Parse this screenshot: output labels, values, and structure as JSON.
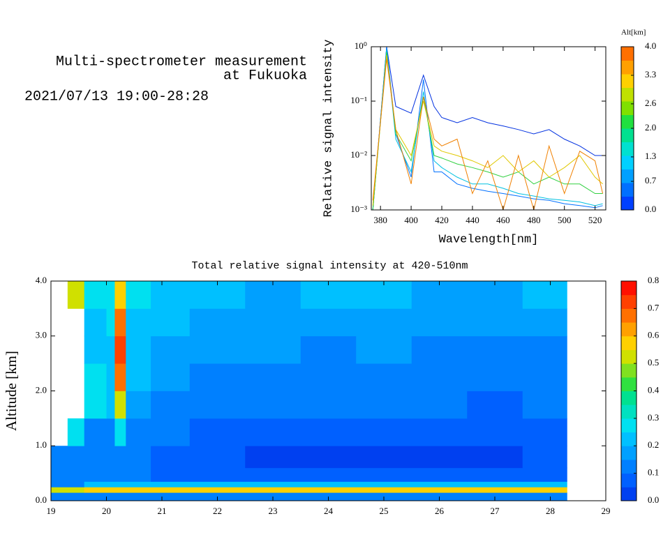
{
  "header": {
    "title_lines": [
      "Multi-spectrometer measurement",
      "at Fukuoka"
    ],
    "subtitle": "2021/07/13 19:00-28:28"
  },
  "chart_data": [
    {
      "type": "line",
      "y_scale": "log",
      "xlabel": "Wavelength[nm]",
      "ylabel": "Relative signal intensity",
      "x": [
        375,
        384,
        390,
        400,
        408,
        415,
        420,
        430,
        440,
        450,
        460,
        470,
        480,
        490,
        500,
        510,
        520,
        525
      ],
      "xlim": [
        374,
        527
      ],
      "xticks": [
        380,
        400,
        420,
        440,
        460,
        480,
        500,
        520
      ],
      "ylim": [
        0.001,
        1
      ],
      "yticks": [
        {
          "value": 0.001,
          "label": "10⁻³"
        },
        {
          "value": 0.01,
          "label": "10⁻²"
        },
        {
          "value": 0.1,
          "label": "10⁻¹"
        },
        {
          "value": 1,
          "label": "10⁰"
        }
      ],
      "series": [
        {
          "color": "#0030e0",
          "values": [
            0.001,
            1,
            0.08,
            0.06,
            0.3,
            0.08,
            0.05,
            0.04,
            0.05,
            0.04,
            0.035,
            0.03,
            0.025,
            0.03,
            0.02,
            0.015,
            0.01,
            0.01
          ]
        },
        {
          "color": "#0070ff",
          "values": [
            0.001,
            1,
            0.025,
            0.004,
            0.25,
            0.005,
            0.005,
            0.003,
            0.0025,
            0.0022,
            0.002,
            0.0018,
            0.0016,
            0.0015,
            0.0013,
            0.0012,
            0.0011,
            0.0012
          ]
        },
        {
          "color": "#00c0e0",
          "values": [
            0.001,
            0.9,
            0.02,
            0.005,
            0.15,
            0.008,
            0.006,
            0.004,
            0.003,
            0.003,
            0.0025,
            0.002,
            0.0018,
            0.0016,
            0.0015,
            0.0014,
            0.0012,
            0.0013
          ]
        },
        {
          "color": "#30d040",
          "values": [
            0.001,
            0.8,
            0.025,
            0.008,
            0.12,
            0.01,
            0.009,
            0.007,
            0.006,
            0.005,
            0.004,
            0.005,
            0.003,
            0.004,
            0.003,
            0.003,
            0.002,
            0.002
          ]
        },
        {
          "color": "#e0c800",
          "values": [
            0.0012,
            0.7,
            0.03,
            0.01,
            0.1,
            0.015,
            0.012,
            0.01,
            0.008,
            0.006,
            0.01,
            0.005,
            0.008,
            0.004,
            0.006,
            0.01,
            0.004,
            0.003
          ]
        },
        {
          "color": "#f08000",
          "values": [
            0.0015,
            0.6,
            0.03,
            0.003,
            0.12,
            0.02,
            0.015,
            0.02,
            0.002,
            0.008,
            0.001,
            0.01,
            0.001,
            0.015,
            0.002,
            0.012,
            0.008,
            0.002
          ]
        }
      ],
      "colorbar": {
        "title": "Alt[km]",
        "lim": [
          0,
          4
        ],
        "colors": [
          "#0040ff",
          "#0070ff",
          "#00a0ff",
          "#00d0ff",
          "#00e0d0",
          "#00e090",
          "#20e040",
          "#80e000",
          "#c0e000",
          "#ffd000",
          "#ffa000",
          "#ff7000"
        ],
        "ticks": [
          {
            "value": 0,
            "label": "0.0"
          },
          {
            "value": 0.7,
            "label": "0.7"
          },
          {
            "value": 1.3,
            "label": "1.3"
          },
          {
            "value": 2,
            "label": "2.0"
          },
          {
            "value": 2.6,
            "label": "2.6"
          },
          {
            "value": 3.3,
            "label": "3.3"
          },
          {
            "value": 4,
            "label": "4.0"
          }
        ]
      }
    },
    {
      "type": "heatmap",
      "title": "Total relative signal intensity at 420-510nm",
      "ylabel": "Altitude [km]",
      "x_edges": [
        19,
        19.3,
        19.6,
        20,
        20.15,
        20.35,
        20.8,
        21.5,
        22.5,
        23.5,
        24.5,
        25.5,
        26.5,
        27.5,
        28.3
      ],
      "y_edges": [
        0,
        0.15,
        0.25,
        0.35,
        0.6,
        1,
        1.5,
        2,
        2.5,
        3,
        3.5,
        4
      ],
      "z": [
        [
          0.1,
          0.1,
          0.1,
          0.1,
          0.1,
          0.1,
          0.1,
          0.1,
          0.1,
          0.1,
          0.1,
          0.1,
          0.1,
          0.1
        ],
        [
          0.5,
          0.5,
          0.6,
          0.6,
          0.6,
          0.6,
          0.6,
          0.6,
          0.6,
          0.6,
          0.6,
          0.6,
          0.6,
          0.6
        ],
        [
          0.15,
          0.15,
          0.2,
          0.2,
          0.2,
          0.2,
          0.2,
          0.2,
          0.2,
          0.2,
          0.2,
          0.2,
          0.2,
          0.2
        ],
        [
          0.1,
          0.1,
          0.1,
          0.1,
          0.1,
          0.1,
          0.08,
          0.08,
          0.07,
          0.07,
          0.07,
          0.07,
          0.07,
          0.07
        ],
        [
          0.12,
          0.12,
          0.1,
          0.1,
          0.12,
          0.1,
          0.07,
          0.05,
          0.04,
          0.04,
          0.04,
          0.04,
          0.04,
          0.05
        ],
        [
          null,
          0.25,
          0.15,
          0.14,
          0.3,
          0.15,
          0.1,
          0.07,
          0.06,
          0.06,
          0.06,
          0.06,
          0.06,
          0.07
        ],
        [
          null,
          null,
          0.3,
          0.2,
          0.5,
          0.18,
          0.14,
          0.12,
          0.11,
          0.1,
          0.1,
          0.1,
          0.09,
          0.1
        ],
        [
          null,
          null,
          0.25,
          0.22,
          0.65,
          0.2,
          0.17,
          0.15,
          0.14,
          0.13,
          0.14,
          0.13,
          0.12,
          0.13
        ],
        [
          null,
          null,
          0.22,
          0.22,
          0.72,
          0.22,
          0.18,
          0.16,
          0.16,
          0.15,
          0.16,
          0.15,
          0.14,
          0.15
        ],
        [
          null,
          null,
          0.22,
          0.25,
          0.68,
          0.24,
          0.2,
          0.17,
          0.17,
          0.17,
          0.18,
          0.17,
          0.16,
          0.17
        ],
        [
          null,
          0.5,
          0.3,
          0.3,
          0.55,
          0.3,
          0.22,
          0.2,
          0.19,
          0.2,
          0.2,
          0.19,
          0.19,
          0.2
        ]
      ],
      "xlim": [
        19,
        29
      ],
      "xticks": [
        19,
        20,
        21,
        22,
        23,
        24,
        25,
        26,
        27,
        28,
        29
      ],
      "ylim": [
        0,
        4
      ],
      "yticks": [
        {
          "value": 0,
          "label": "0.0"
        },
        {
          "value": 1,
          "label": "1.0"
        },
        {
          "value": 2,
          "label": "2.0"
        },
        {
          "value": 3,
          "label": "3.0"
        },
        {
          "value": 4,
          "label": "4.0"
        }
      ],
      "colorbar": {
        "lim": [
          0,
          0.8
        ],
        "colors": [
          "#0040f0",
          "#0060ff",
          "#0080ff",
          "#00a0ff",
          "#00c0ff",
          "#00e0f0",
          "#00e0c0",
          "#00e090",
          "#30e040",
          "#80e020",
          "#d0e000",
          "#ffd000",
          "#ffa000",
          "#ff7000",
          "#ff4000",
          "#ff1000"
        ],
        "ticks": [
          {
            "value": 0,
            "label": "0.0"
          },
          {
            "value": 0.1,
            "label": "0.1"
          },
          {
            "value": 0.2,
            "label": "0.2"
          },
          {
            "value": 0.3,
            "label": "0.3"
          },
          {
            "value": 0.4,
            "label": "0.4"
          },
          {
            "value": 0.5,
            "label": "0.5"
          },
          {
            "value": 0.6,
            "label": "0.6"
          },
          {
            "value": 0.7,
            "label": "0.7"
          },
          {
            "value": 0.8,
            "label": "0.8"
          }
        ]
      }
    }
  ]
}
